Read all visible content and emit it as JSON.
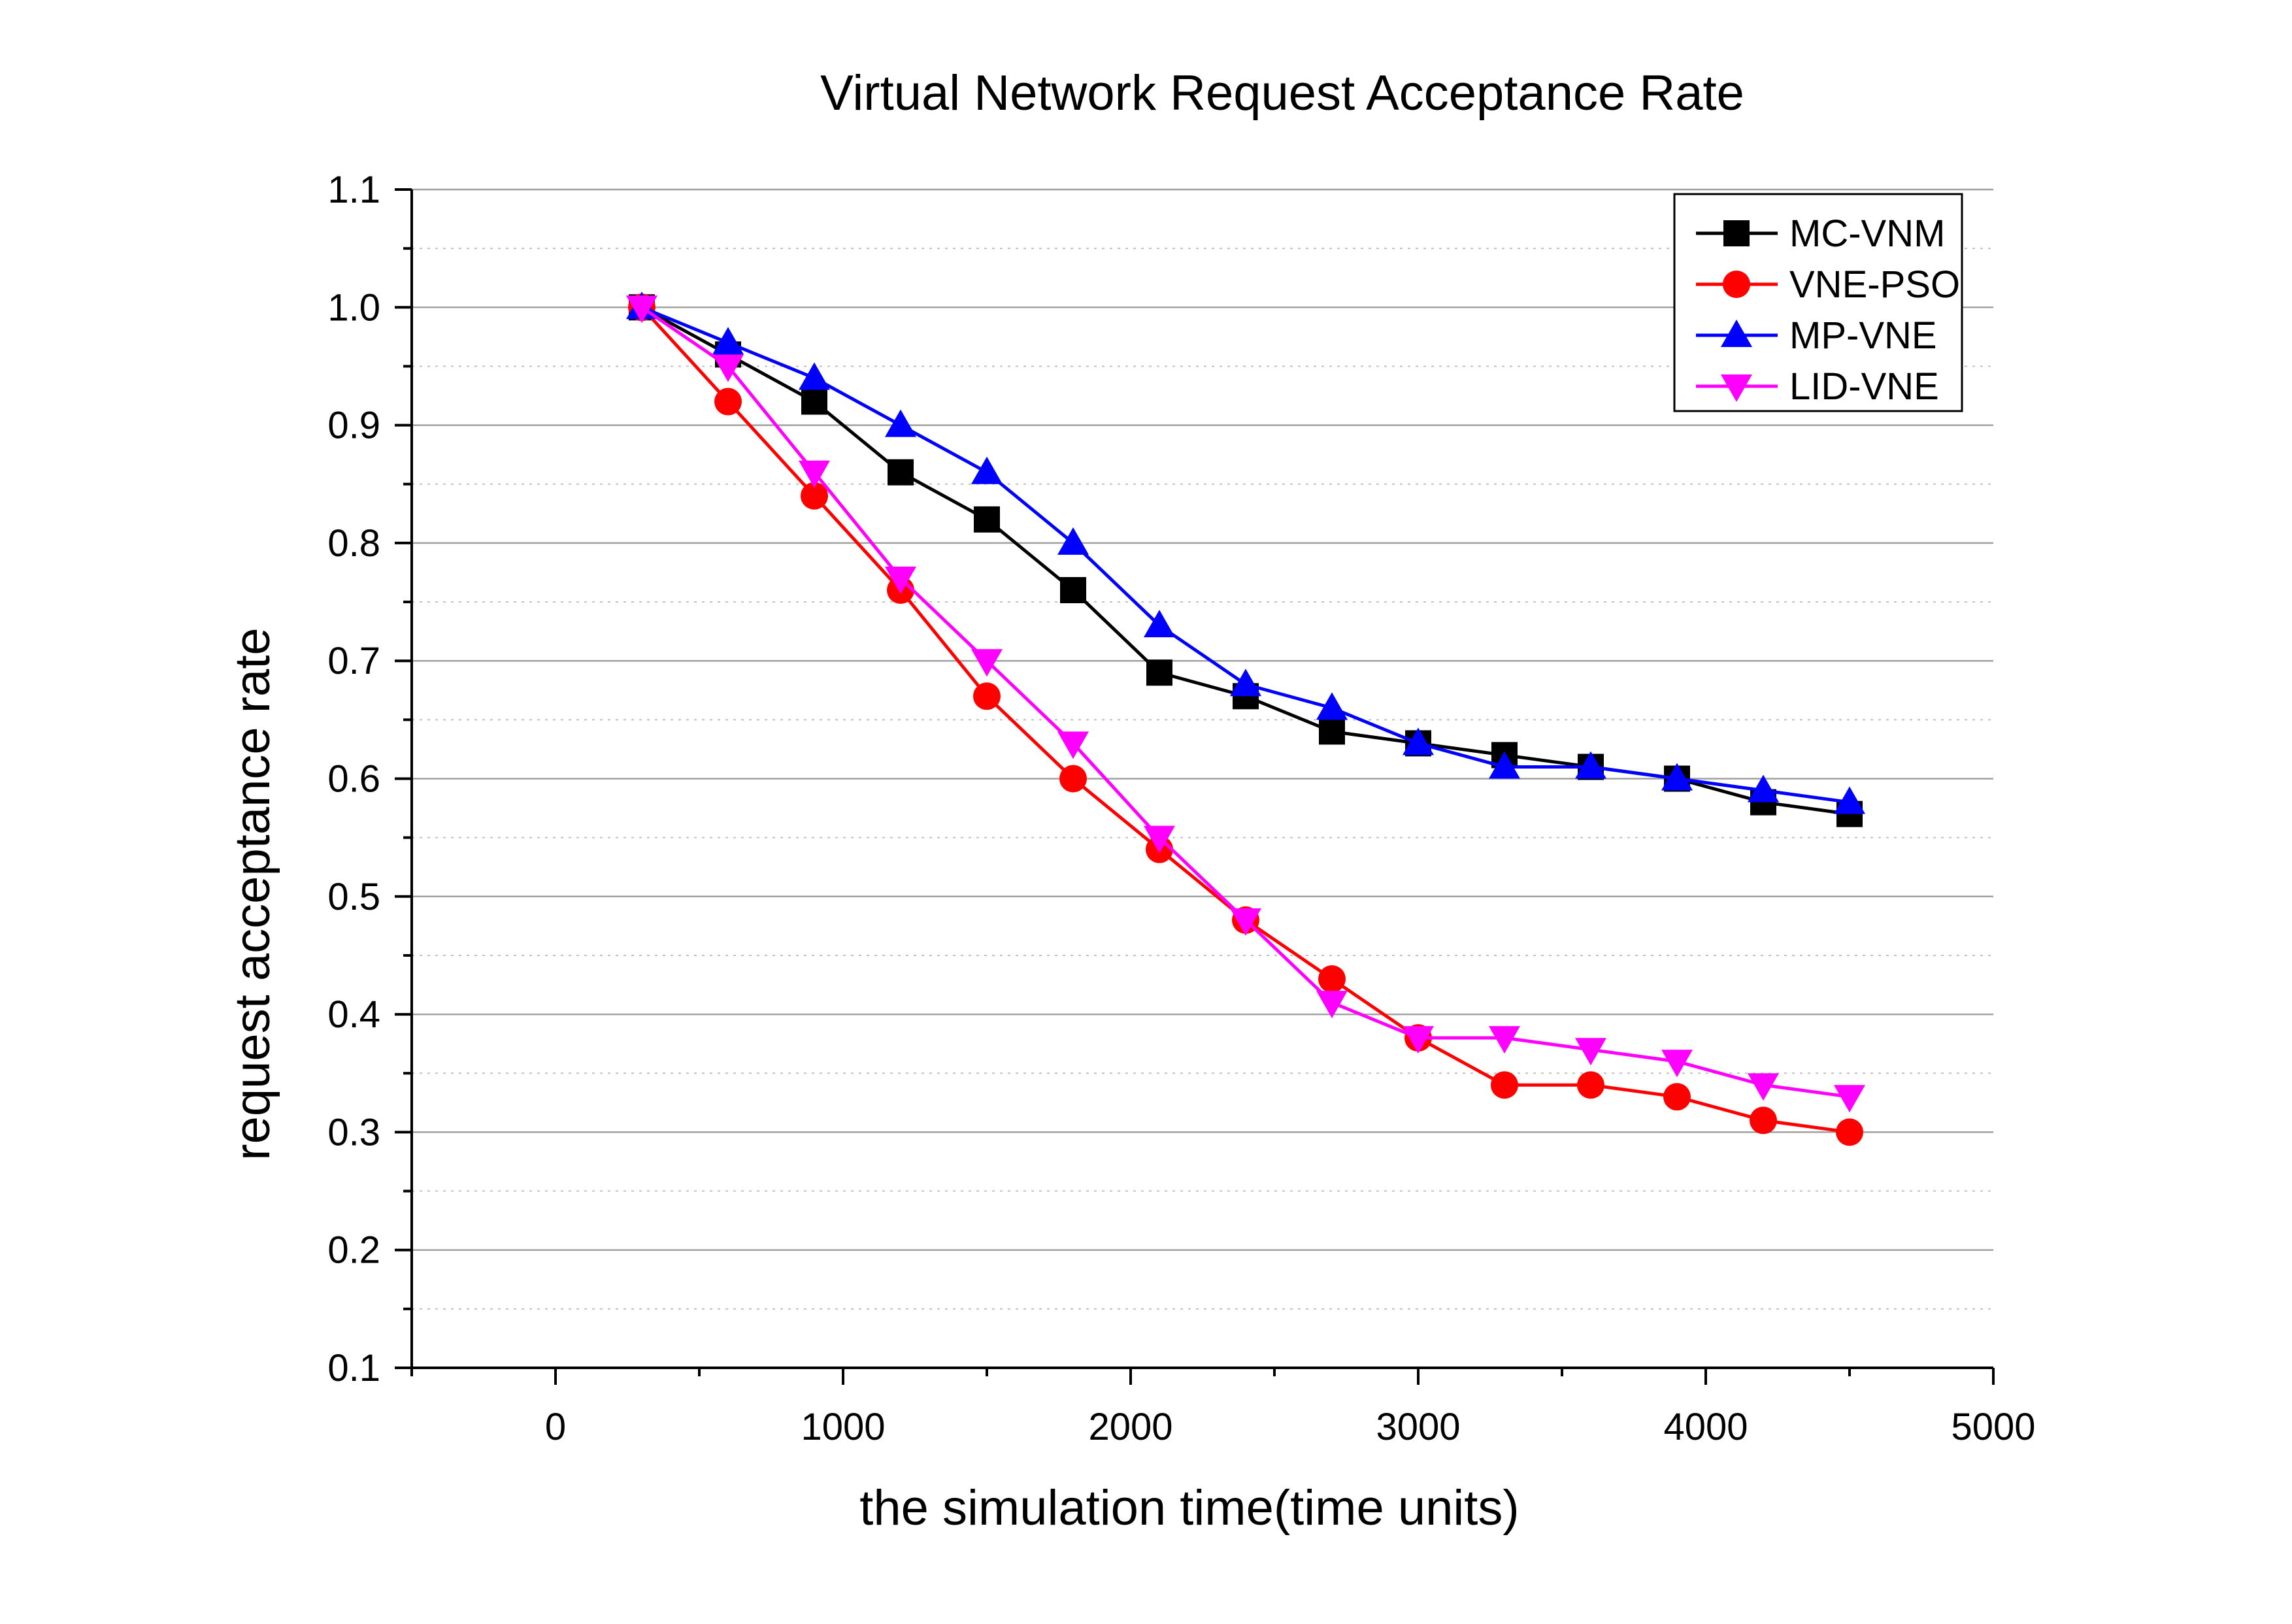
{
  "chart_data": {
    "type": "line",
    "title": "Virtual Network Request Acceptance Rate",
    "xlabel": "the simulation time(time units)",
    "ylabel": "request acceptance rate",
    "xlim": [
      -500,
      5000
    ],
    "ylim": [
      0.1,
      1.1
    ],
    "xticks": [
      0,
      1000,
      2000,
      3000,
      4000,
      5000
    ],
    "xtick_labels": [
      "0",
      "1000",
      "2000",
      "3000",
      "4000",
      "5000"
    ],
    "yticks": [
      0.1,
      0.2,
      0.3,
      0.4,
      0.5,
      0.6,
      0.7,
      0.8,
      0.9,
      1.0,
      1.1
    ],
    "ytick_labels": [
      "0.1",
      "0.2",
      "0.3",
      "0.4",
      "0.5",
      "0.6",
      "0.7",
      "0.8",
      "0.9",
      "1.0",
      "1.1"
    ],
    "grid": true,
    "legend_position": "top-right",
    "x": [
      300,
      600,
      900,
      1200,
      1500,
      1800,
      2100,
      2400,
      2700,
      3000,
      3300,
      3600,
      3900,
      4200,
      4500
    ],
    "series": [
      {
        "name": "MC-VNM",
        "color": "#000000",
        "marker": "square",
        "values": [
          1.0,
          0.96,
          0.92,
          0.86,
          0.82,
          0.76,
          0.69,
          0.67,
          0.64,
          0.63,
          0.62,
          0.61,
          0.6,
          0.58,
          0.57
        ]
      },
      {
        "name": "VNE-PSO",
        "color": "#ff0000",
        "marker": "circle",
        "values": [
          1.0,
          0.92,
          0.84,
          0.76,
          0.67,
          0.6,
          0.54,
          0.48,
          0.43,
          0.38,
          0.34,
          0.34,
          0.33,
          0.31,
          0.3
        ]
      },
      {
        "name": "MP-VNE",
        "color": "#0000ff",
        "marker": "triangle-up",
        "values": [
          1.0,
          0.97,
          0.94,
          0.9,
          0.86,
          0.8,
          0.73,
          0.68,
          0.66,
          0.63,
          0.61,
          0.61,
          0.6,
          0.59,
          0.58
        ]
      },
      {
        "name": "LID-VNE",
        "color": "#ff00ff",
        "marker": "triangle-down",
        "values": [
          1.0,
          0.95,
          0.86,
          0.77,
          0.7,
          0.63,
          0.55,
          0.48,
          0.41,
          0.38,
          0.38,
          0.37,
          0.36,
          0.34,
          0.33
        ]
      }
    ]
  }
}
